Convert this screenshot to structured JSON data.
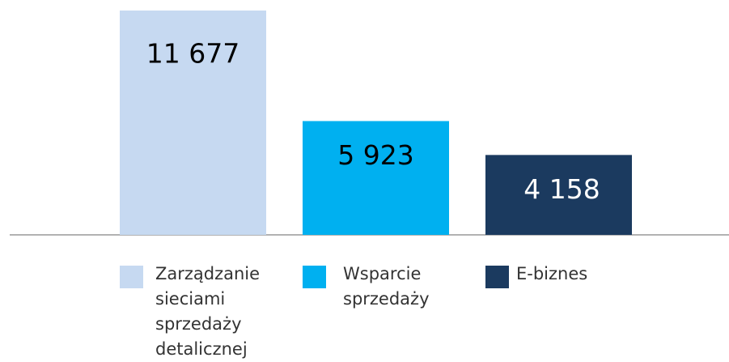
{
  "chart_data": {
    "type": "bar",
    "categories": [
      "Zarządzanie sieciami sprzedaży detalicznej",
      "Wsparcie sprzedaży",
      "E-biznes"
    ],
    "values": [
      11677,
      5923,
      4158
    ],
    "value_labels": [
      "11 677",
      "5 923",
      "4 158"
    ],
    "colors": [
      "#c6d9f1",
      "#00b0f0",
      "#1b3a5f"
    ],
    "ylim": [
      0,
      11677
    ]
  }
}
